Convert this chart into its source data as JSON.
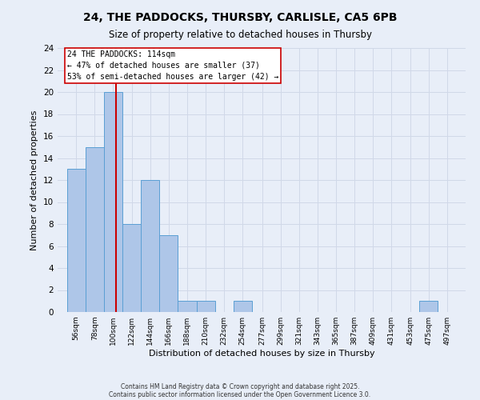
{
  "title_line1": "24, THE PADDOCKS, THURSBY, CARLISLE, CA5 6PB",
  "title_line2": "Size of property relative to detached houses in Thursby",
  "xlabel": "Distribution of detached houses by size in Thursby",
  "ylabel": "Number of detached properties",
  "bins": [
    56,
    78,
    100,
    122,
    144,
    166,
    188,
    210,
    232,
    254,
    277,
    299,
    321,
    343,
    365,
    387,
    409,
    431,
    453,
    475,
    497
  ],
  "counts": [
    13,
    15,
    20,
    8,
    12,
    7,
    1,
    1,
    0,
    1,
    0,
    0,
    0,
    0,
    0,
    0,
    0,
    0,
    0,
    1,
    0
  ],
  "bin_width": 22,
  "bar_color": "#aec6e8",
  "bar_edge_color": "#5a9fd4",
  "property_size": 114,
  "vline_color": "#cc0000",
  "annotation_text": "24 THE PADDOCKS: 114sqm\n← 47% of detached houses are smaller (37)\n53% of semi-detached houses are larger (42) →",
  "annotation_box_color": "#ffffff",
  "annotation_box_edge": "#cc0000",
  "ylim": [
    0,
    24
  ],
  "yticks": [
    0,
    2,
    4,
    6,
    8,
    10,
    12,
    14,
    16,
    18,
    20,
    22,
    24
  ],
  "grid_color": "#d0d8e8",
  "bg_color": "#e8eef8",
  "footnote1": "Contains HM Land Registry data © Crown copyright and database right 2025.",
  "footnote2": "Contains public sector information licensed under the Open Government Licence 3.0."
}
